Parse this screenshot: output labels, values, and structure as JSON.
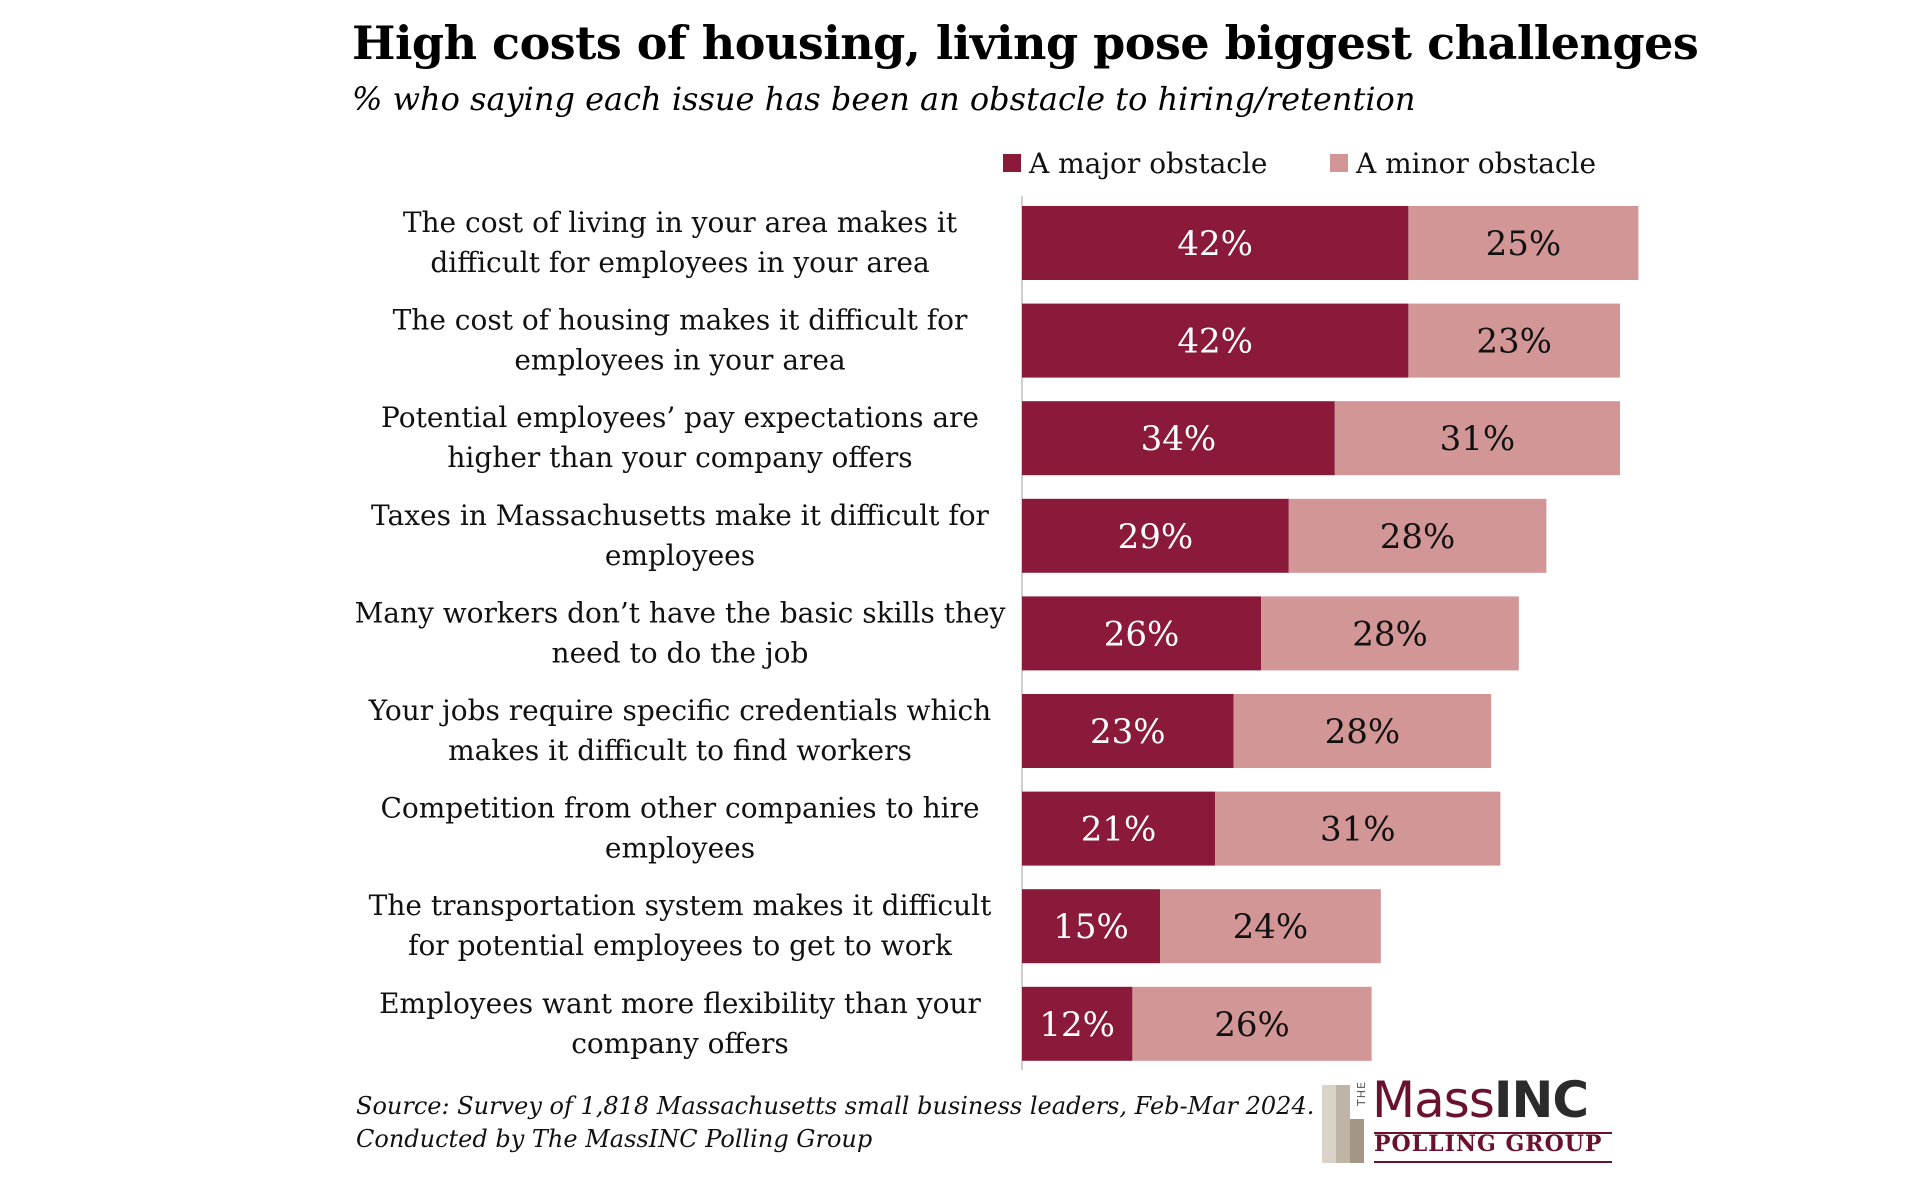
{
  "chart_data": {
    "type": "bar",
    "orientation": "horizontal",
    "stacked": true,
    "title": "High costs of housing, living pose biggest challenges",
    "subtitle": "% who saying each issue has been an obstacle to hiring/retention",
    "categories": [
      [
        "The cost of living in your area makes it",
        "difficult for employees in your area"
      ],
      [
        "The cost of housing makes it difficult for",
        "employees in your area"
      ],
      [
        "Potential employees’ pay expectations are",
        "higher than your company offers"
      ],
      [
        "Taxes in Massachusetts make it difficult for",
        "employees"
      ],
      [
        "Many workers don’t have the basic skills they",
        "need to do the job"
      ],
      [
        "Your jobs require specific credentials which",
        "makes it difficult to find workers"
      ],
      [
        "Competition from other companies to hire",
        "employees"
      ],
      [
        "The transportation system makes it difficult",
        "for potential employees to get to work"
      ],
      [
        "Employees want more flexibility than your",
        "company offers"
      ]
    ],
    "series": [
      {
        "name": "A major obstacle",
        "color": "#8b1a3a",
        "label_color": "#ffffff",
        "values": [
          42,
          42,
          34,
          29,
          26,
          23,
          21,
          15,
          12
        ]
      },
      {
        "name": "A minor obstacle",
        "color": "#d39696",
        "label_color": "#111111",
        "values": [
          25,
          23,
          31,
          28,
          28,
          28,
          31,
          24,
          26
        ]
      }
    ],
    "value_suffix": "%",
    "legend_position": "top-right",
    "grid": false
  },
  "footer": {
    "source_line1": "Source: Survey of 1,818 Massachusetts small business leaders, Feb-Mar 2024.",
    "source_line2": "Conducted by The MassINC Polling Group"
  },
  "logo": {
    "the": "THE",
    "mass": "Mass",
    "inc": "INC",
    "polling_group": "POLLING GROUP"
  }
}
